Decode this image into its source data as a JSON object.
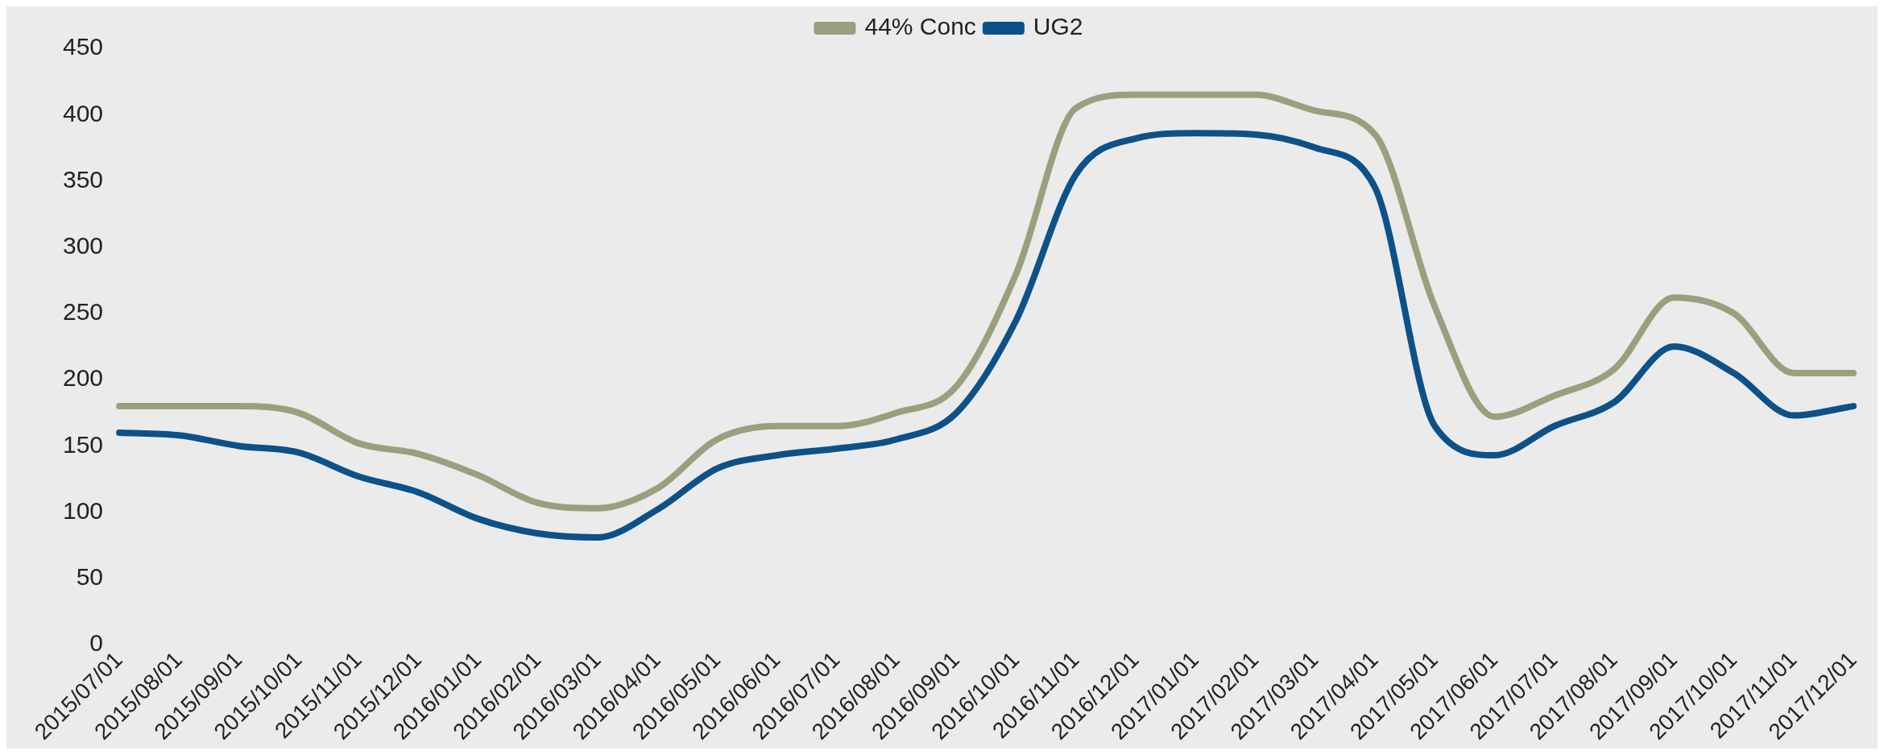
{
  "chart_data": {
    "type": "line",
    "categories": [
      "2015/07/01",
      "2015/08/01",
      "2015/09/01",
      "2015/10/01",
      "2015/11/01",
      "2015/12/01",
      "2016/01/01",
      "2016/02/01",
      "2016/03/01",
      "2016/04/01",
      "2016/05/01",
      "2016/06/01",
      "2016/07/01",
      "2016/08/01",
      "2016/09/01",
      "2016/10/01",
      "2016/11/01",
      "2016/12/01",
      "2017/01/01",
      "2017/02/01",
      "2017/03/01",
      "2017/04/01",
      "2017/05/01",
      "2017/06/01",
      "2017/07/01",
      "2017/08/01",
      "2017/09/01",
      "2017/10/01",
      "2017/11/01",
      "2017/12/01"
    ],
    "series": [
      {
        "name": "44% Conc",
        "color": "#9a9f7e",
        "values": [
          180,
          180,
          180,
          175,
          152,
          144,
          128,
          107,
          103,
          118,
          155,
          165,
          165,
          175,
          195,
          280,
          405,
          415,
          415,
          415,
          403,
          385,
          255,
          172,
          188,
          208,
          262,
          250,
          205,
          205
        ]
      },
      {
        "name": "UG2",
        "color": "#0d5189",
        "values": [
          160,
          158,
          150,
          145,
          127,
          115,
          95,
          84,
          81,
          102,
          133,
          143,
          148,
          155,
          175,
          245,
          355,
          382,
          386,
          385,
          375,
          345,
          165,
          143,
          165,
          183,
          225,
          205,
          173,
          180
        ]
      }
    ],
    "ylim": [
      0,
      450
    ],
    "yticks": [
      0,
      50,
      100,
      150,
      200,
      250,
      300,
      350,
      400,
      450
    ],
    "grid": false,
    "legend": "top",
    "marker": "none",
    "line_style": "solid"
  }
}
